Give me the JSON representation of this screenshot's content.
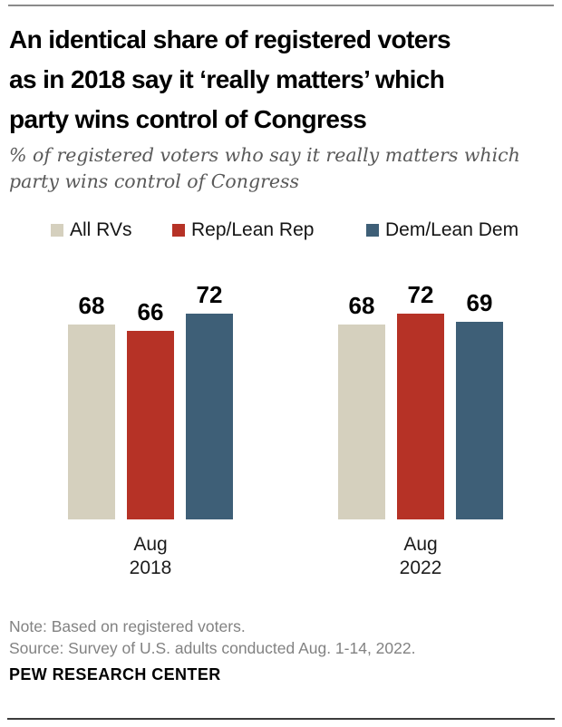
{
  "header": {
    "title": "An identical share of registered voters\nas in 2018 say it ‘really matters’ which\nparty wins control of Congress",
    "subtitle": "% of registered voters who say it really matters which\nparty wins control of Congress"
  },
  "legend": [
    {
      "label": "All RVs",
      "color": "#D5D0BE"
    },
    {
      "label": "Rep/Lean Rep",
      "color": "#B63226"
    },
    {
      "label": "Dem/Lean Dem",
      "color": "#3E5F77"
    }
  ],
  "chart_data": {
    "type": "bar",
    "categories": [
      "Aug\n2018",
      "Aug\n2022"
    ],
    "series": [
      {
        "name": "All RVs",
        "color": "#D5D0BE",
        "values": [
          68,
          68
        ]
      },
      {
        "name": "Rep/Lean Rep",
        "color": "#B63226",
        "values": [
          66,
          72
        ]
      },
      {
        "name": "Dem/Lean Dem",
        "color": "#3E5F77",
        "values": [
          72,
          69
        ]
      }
    ],
    "title": "An identical share of registered voters as in 2018 say it ‘really matters’ which party wins control of Congress",
    "xlabel": "",
    "ylabel": "",
    "ylim": [
      0,
      100
    ],
    "grid": false,
    "value_labels": true,
    "legend_position": "top"
  },
  "footer": {
    "note": "Note: Based on registered voters.",
    "source": "Source: Survey of U.S. adults conducted Aug. 1-14, 2022.",
    "brand": "PEW RESEARCH CENTER"
  },
  "colors": {
    "top_rule": "#8a8a8a",
    "bottom_rule": "#3d3d3d",
    "subtitle_text": "#595959",
    "note_text": "#828282"
  }
}
